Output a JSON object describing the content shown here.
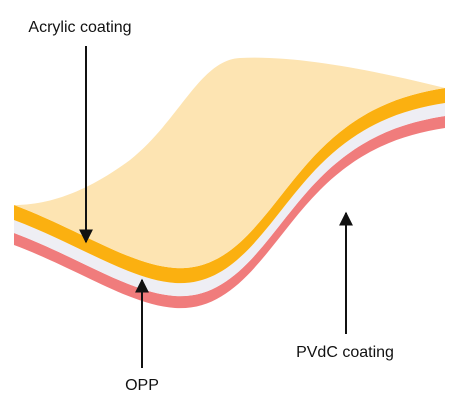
{
  "labels": [
    "Acrylic coating",
    "OPP",
    "PVdC coating"
  ]
}
